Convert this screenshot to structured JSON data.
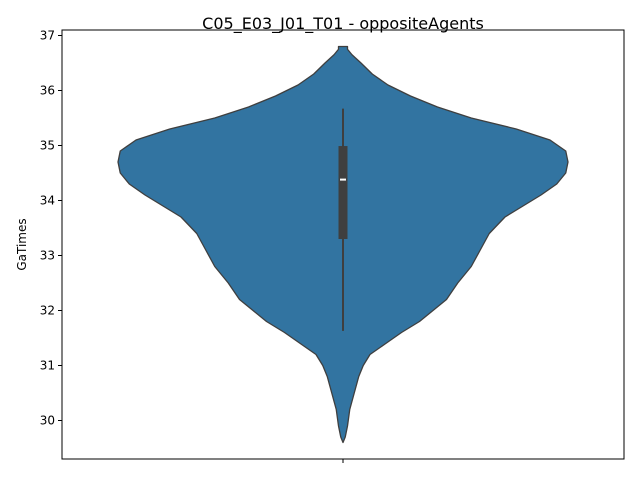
{
  "chart_data": {
    "type": "violin",
    "title": "C05_E03_J01_T01 - oppositeAgents",
    "xlabel": "",
    "ylabel": "GaTimes",
    "ylim": [
      29.3,
      37.1
    ],
    "yticks": [
      30,
      31,
      32,
      33,
      34,
      35,
      36,
      37
    ],
    "xticks": [
      ""
    ],
    "grid": false,
    "colors": {
      "violin_fill": "#3274a1",
      "violin_edge": "#3f3f3f",
      "box": "#3f3f3f",
      "median": "#ffffff"
    },
    "series": [
      {
        "name": "",
        "summary": {
          "min": 31.63,
          "q1": 33.3,
          "median": 34.38,
          "q3": 34.99,
          "max": 35.67
        },
        "kde_extent": [
          29.6,
          36.8
        ],
        "density_profile": [
          [
            29.6,
            0.0
          ],
          [
            29.7,
            0.01
          ],
          [
            29.9,
            0.02
          ],
          [
            30.2,
            0.03
          ],
          [
            30.5,
            0.05
          ],
          [
            30.8,
            0.07
          ],
          [
            31.0,
            0.09
          ],
          [
            31.2,
            0.12
          ],
          [
            31.4,
            0.19
          ],
          [
            31.6,
            0.26
          ],
          [
            31.8,
            0.34
          ],
          [
            32.0,
            0.4
          ],
          [
            32.2,
            0.46
          ],
          [
            32.5,
            0.51
          ],
          [
            32.8,
            0.57
          ],
          [
            33.1,
            0.61
          ],
          [
            33.4,
            0.65
          ],
          [
            33.7,
            0.72
          ],
          [
            33.9,
            0.8
          ],
          [
            34.1,
            0.88
          ],
          [
            34.3,
            0.95
          ],
          [
            34.5,
            0.99
          ],
          [
            34.7,
            1.0
          ],
          [
            34.9,
            0.99
          ],
          [
            35.1,
            0.92
          ],
          [
            35.3,
            0.77
          ],
          [
            35.5,
            0.57
          ],
          [
            35.7,
            0.42
          ],
          [
            35.9,
            0.3
          ],
          [
            36.1,
            0.2
          ],
          [
            36.3,
            0.13
          ],
          [
            36.5,
            0.08
          ],
          [
            36.65,
            0.04
          ],
          [
            36.75,
            0.02
          ],
          [
            36.8,
            0.02
          ]
        ]
      }
    ]
  }
}
